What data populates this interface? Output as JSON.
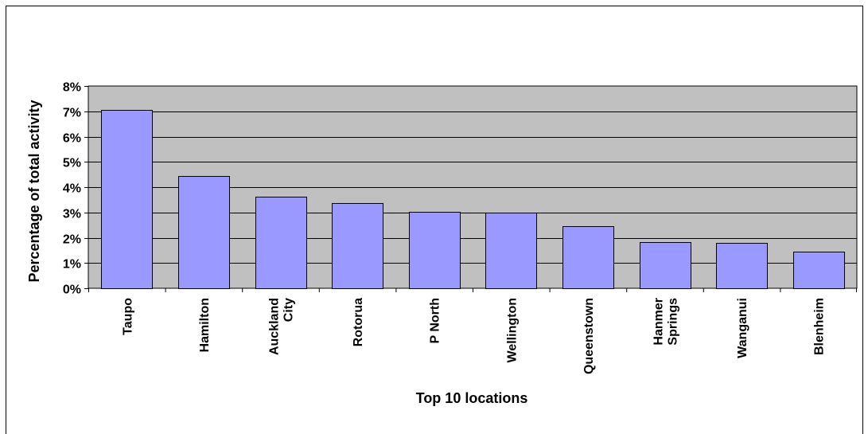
{
  "chart_data": {
    "type": "bar",
    "categories": [
      "Taupo",
      "Hamilton",
      "Auckland City",
      "Rotorua",
      "P North",
      "Wellington",
      "Queenstown",
      "Hanmer Springs",
      "Wanganui",
      "Blenheim"
    ],
    "category_lines": [
      [
        "Taupo"
      ],
      [
        "Hamilton"
      ],
      [
        "Auckland",
        "City"
      ],
      [
        "Rotorua"
      ],
      [
        "P North"
      ],
      [
        "Wellington"
      ],
      [
        "Queenstown"
      ],
      [
        "Hanmer",
        "Springs"
      ],
      [
        "Wanganui"
      ],
      [
        "Blenheim"
      ]
    ],
    "values": [
      7.05,
      4.45,
      3.63,
      3.38,
      3.02,
      2.98,
      2.45,
      1.84,
      1.81,
      1.46
    ],
    "value_unit": "percent",
    "xlabel": "Top 10 locations",
    "ylabel": "Percentage of total activity",
    "ylim": [
      0,
      8
    ],
    "yticks": [
      "0%",
      "1%",
      "2%",
      "3%",
      "4%",
      "5%",
      "6%",
      "7%",
      "8%"
    ],
    "grid": true,
    "colors": {
      "bar_fill": "#9999ff",
      "plot_background": "#c0c0c0",
      "gridline": "#000000",
      "bar_stroke": "#000000"
    }
  }
}
